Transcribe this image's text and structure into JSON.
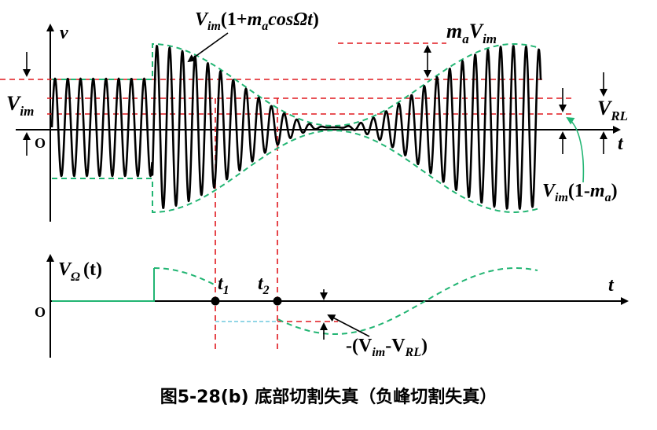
{
  "labels": {
    "v": "v",
    "t": "t",
    "origin": "O",
    "vim_main": "V",
    "vim_sub": "im",
    "env_upper_v": "V",
    "env_upper_sub": "im",
    "env_upper_rest1": "(1+",
    "env_upper_m": "m",
    "env_upper_a": "a",
    "env_upper_cos": "cosΩ",
    "env_upper_t": "t",
    "env_upper_close": ")",
    "mavim_m": "m",
    "mavim_a": "a",
    "mavim_v": "V",
    "mavim_im": "im",
    "vrl_v": "V",
    "vrl_sub": "RL",
    "env_lower_v": "V",
    "env_lower_sub": "im",
    "env_lower_rest": "(1-",
    "env_lower_m": "m",
    "env_lower_a": "a",
    "env_lower_close": ")",
    "vomega_v": "V",
    "vomega_sub": "Ω",
    "vomega_t": "(t)",
    "t1_t": "t",
    "t1_sub": "1",
    "t2_t": "t",
    "t2_sub": "2",
    "bottom_t": "t",
    "bottom_origin": "O",
    "neg_open": "-(V",
    "neg_im": "im",
    "neg_mid": "-V",
    "neg_rl": "RL",
    "neg_close": ")"
  },
  "caption": "图5-28(b)  底部切割失真（负峰切割失真）",
  "colors": {
    "signal": "#000000",
    "envelope": "#22b573",
    "reference": "#e0181e",
    "arrow": "#22b573"
  }
}
